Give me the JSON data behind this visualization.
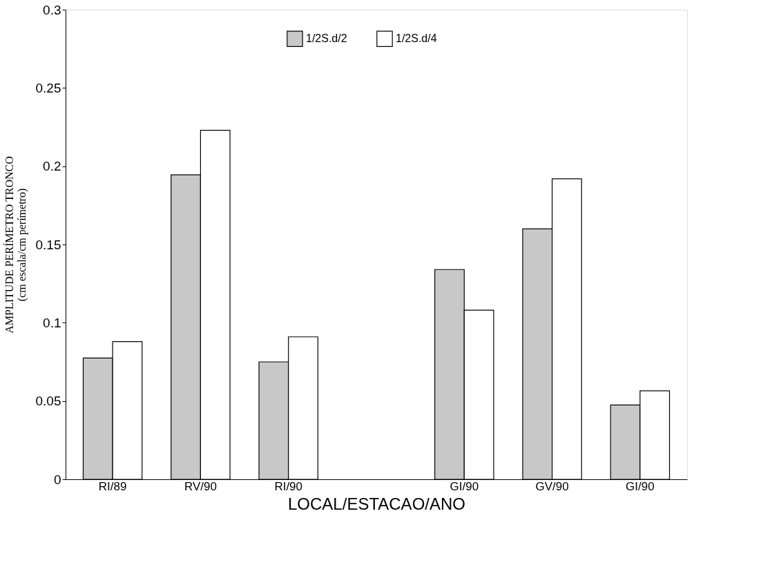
{
  "chart_data": {
    "type": "bar",
    "xlabel": "LOCAL/ESTACAO/ANO",
    "ylabel": "AMPLITUDE PERÍMETRO TRONCO\n(cm escala/cm perímetro)",
    "categories": [
      "RI/89",
      "RV/90",
      "RI/90",
      null,
      "GI/90",
      "GV/90",
      "GI/90"
    ],
    "series": [
      {
        "name": "1/2S.d/2",
        "color": "#c8c8c8",
        "values": [
          0.0775,
          0.1945,
          0.075,
          null,
          0.134,
          0.16,
          0.0475
        ]
      },
      {
        "name": "1/2S.d/4",
        "color": "#ffffff",
        "values": [
          0.088,
          0.223,
          0.091,
          null,
          0.108,
          0.192,
          0.0565
        ]
      }
    ],
    "ylim": [
      0,
      0.3
    ],
    "yticks": [
      0,
      0.05,
      0.1,
      0.15,
      0.2,
      0.25,
      0.3
    ],
    "grid": false,
    "legend": "top"
  }
}
